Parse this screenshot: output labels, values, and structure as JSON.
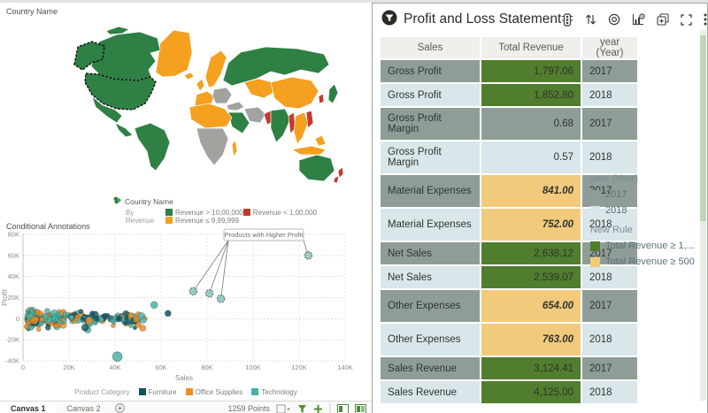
{
  "map_viz": {
    "title": "Country Name",
    "legend": {
      "series_label": "Country Name",
      "by_label": "By Revenue",
      "items": [
        {
          "label": "Revenue > 10,00,000",
          "color": "#2e8045"
        },
        {
          "label": "Revenue < 1,00,000",
          "color": "#c23b2e"
        },
        {
          "label": "Revenue ≤ 9,99,999",
          "color": "#f5a01f"
        }
      ]
    }
  },
  "scatter_viz": {
    "title": "Conditional Annotations",
    "xlabel": "Sales",
    "ylabel": "Profit",
    "legend_title": "Product Category",
    "annotation_text": "Products with Higher Profit"
  },
  "panel": {
    "title": "Profit and Loss Statement",
    "toolbar_icons": [
      {
        "name": "conditional-format-icon",
        "glyph": "traffic"
      },
      {
        "name": "sort-icon",
        "glyph": "sort"
      },
      {
        "name": "drill-target-icon",
        "glyph": "target"
      },
      {
        "name": "time-series-icon",
        "glyph": "chartclock"
      },
      {
        "name": "duplicate-icon",
        "glyph": "duplicate"
      },
      {
        "name": "maximize-icon",
        "glyph": "maximize"
      },
      {
        "name": "more-options-icon",
        "glyph": "kebab"
      }
    ],
    "table": {
      "columns": [
        "Sales",
        "Total Revenue",
        "year (Year)"
      ],
      "rows": [
        {
          "sales": "Gross Profit",
          "revenue": "1,797.06",
          "year": "2017",
          "highlight": "green",
          "lines": 1
        },
        {
          "sales": "Gross Profit",
          "revenue": "1,852.80",
          "year": "2018",
          "highlight": "green",
          "lines": 1
        },
        {
          "sales": "Gross Profit Margin",
          "revenue": "0.68",
          "year": "2017",
          "highlight": "none",
          "lines": 2
        },
        {
          "sales": "Gross Profit Margin",
          "revenue": "0.57",
          "year": "2018",
          "highlight": "none",
          "lines": 2
        },
        {
          "sales": "Material Expenses",
          "revenue": "841.00",
          "year": "2017",
          "highlight": "orange",
          "lines": 2
        },
        {
          "sales": "Material Expenses",
          "revenue": "752.00",
          "year": "2018",
          "highlight": "orange",
          "lines": 2
        },
        {
          "sales": "Net Sales",
          "revenue": "2,638.12",
          "year": "2017",
          "highlight": "green",
          "lines": 1
        },
        {
          "sales": "Net Sales",
          "revenue": "2,539.07",
          "year": "2018",
          "highlight": "green",
          "lines": 1
        },
        {
          "sales": "Other Expenses",
          "revenue": "654.00",
          "year": "2017",
          "highlight": "orange",
          "lines": 2
        },
        {
          "sales": "Other Expenses",
          "revenue": "763.00",
          "year": "2018",
          "highlight": "orange",
          "lines": 2
        },
        {
          "sales": "Sales Revenue",
          "revenue": "3,124.41",
          "year": "2017",
          "highlight": "green",
          "lines": 1
        },
        {
          "sales": "Sales Revenue",
          "revenue": "4,125.00",
          "year": "2018",
          "highlight": "green",
          "lines": 1
        }
      ]
    },
    "legend": {
      "year_title": "year (Year)",
      "year_items": [
        {
          "label": "2017",
          "color": "#8e9e97"
        },
        {
          "label": "2018",
          "color": "#d9e6ea"
        }
      ],
      "rule_title": "New Rule",
      "rule_items": [
        {
          "label": "Total Revenue ≥ 1,...",
          "color": "#507d2e"
        },
        {
          "label": "Total Revenue ≥ 500",
          "color": "#f1ca7c"
        }
      ]
    }
  },
  "footer": {
    "tabs": [
      {
        "label": "Canvas 1",
        "active": true
      },
      {
        "label": "Canvas 2",
        "active": false
      }
    ],
    "points_label": "1259 Points",
    "icons": [
      {
        "name": "selection-mode-icon",
        "glyph": "boxcaret"
      },
      {
        "name": "filter-green-icon",
        "glyph": "greenfunnel"
      },
      {
        "name": "add-green-icon",
        "glyph": "greenplus"
      },
      {
        "name": "divider",
        "glyph": "sep"
      },
      {
        "name": "layout-single-icon",
        "glyph": "panel1"
      },
      {
        "name": "layout-split-icon",
        "glyph": "panel2"
      }
    ]
  },
  "chart_data": [
    {
      "type": "heatmap",
      "subtype": "choropleth-world-map",
      "title": "Country Name",
      "legend_title": "Country Name",
      "legend_subtitle": "By Revenue",
      "categories": [
        {
          "label": "Revenue > 10,00,000",
          "tier": "high",
          "color": "#2e8045"
        },
        {
          "label": "Revenue < 1,00,000",
          "tier": "low",
          "color": "#c23b2e"
        },
        {
          "label": "Revenue ≤ 9,99,999",
          "tier": "mid",
          "color": "#f5a01f"
        }
      ],
      "tier_colors": {
        "high": "#2e8045",
        "low": "#c23b2e",
        "mid": "#f5a01f",
        "none": "#a2a29e"
      },
      "regions": [
        {
          "name": "Canada",
          "tier": "high"
        },
        {
          "name": "Alaska",
          "tier": "high",
          "selected": true
        },
        {
          "name": "United States",
          "tier": "high",
          "selected": true
        },
        {
          "name": "Greenland",
          "tier": "mid"
        },
        {
          "name": "Mexico",
          "tier": "high"
        },
        {
          "name": "South America",
          "tier": "high"
        },
        {
          "name": "Iceland",
          "tier": "mid"
        },
        {
          "name": "United Kingdom",
          "tier": "mid"
        },
        {
          "name": "Scandinavia",
          "tier": "mid"
        },
        {
          "name": "Western Europe",
          "tier": "mid"
        },
        {
          "name": "Central Europe",
          "tier": "none"
        },
        {
          "name": "Russia",
          "tier": "high"
        },
        {
          "name": "Central Asia",
          "tier": "mid"
        },
        {
          "name": "Turkey",
          "tier": "none"
        },
        {
          "name": "Iran",
          "tier": "none"
        },
        {
          "name": "Arabia",
          "tier": "high"
        },
        {
          "name": "North Africa",
          "tier": "mid"
        },
        {
          "name": "Central Africa",
          "tier": "none"
        },
        {
          "name": "Madagascar",
          "tier": "mid"
        },
        {
          "name": "Pakistan",
          "tier": "low"
        },
        {
          "name": "India",
          "tier": "high"
        },
        {
          "name": "Myanmar",
          "tier": "low"
        },
        {
          "name": "China",
          "tier": "mid"
        },
        {
          "name": "Southeast Asia",
          "tier": "mid"
        },
        {
          "name": "Vietnam",
          "tier": "low"
        },
        {
          "name": "Indonesia",
          "tier": "mid"
        },
        {
          "name": "Korea",
          "tier": "low"
        },
        {
          "name": "Japan",
          "tier": "high"
        },
        {
          "name": "Australia",
          "tier": "high"
        },
        {
          "name": "New Zealand",
          "tier": "low"
        }
      ]
    },
    {
      "type": "scatter",
      "title": "Conditional Annotations",
      "xlabel": "Sales",
      "ylabel": "Profit",
      "xlim": [
        0,
        140000
      ],
      "ylim": [
        -40000,
        80000
      ],
      "xticks": [
        "0",
        "20K",
        "40K",
        "60K",
        "80K",
        "100K",
        "120K",
        "140K"
      ],
      "yticks": [
        "80K",
        "60K",
        "40K",
        "20K",
        "0",
        "-20K",
        "-40K"
      ],
      "grid": true,
      "legend_position": "bottom",
      "legend_title": "Product Category",
      "series": [
        {
          "name": "Furniture",
          "color": "#14525e"
        },
        {
          "name": "Office Supplies",
          "color": "#ee8d23"
        },
        {
          "name": "Technology",
          "color": "#4ab1a8"
        }
      ],
      "points_total": 1259,
      "annotation": {
        "text": "Products with Higher Profit",
        "targets": [
          {
            "x": 124000,
            "y": 60000
          },
          {
            "x": 81000,
            "y": 24000
          },
          {
            "x": 86000,
            "y": 19000
          },
          {
            "x": 74000,
            "y": 26000
          }
        ]
      },
      "outliers": [
        {
          "x": 41000,
          "y": -36000,
          "series": 2,
          "r": 5.5
        },
        {
          "x": 57000,
          "y": 13000,
          "series": 2,
          "r": 4
        },
        {
          "x": 52000,
          "y": -9000,
          "series": 1,
          "r": 3.5
        },
        {
          "x": 63000,
          "y": 5000,
          "series": 0,
          "r": 3.5
        }
      ],
      "cluster_spec": {
        "seed": 11,
        "count": 250,
        "x_min": 1500,
        "x_core_span": 50000,
        "y_spread": 6500,
        "series_weights": [
          0.27,
          0.25,
          0.48
        ]
      }
    }
  ]
}
